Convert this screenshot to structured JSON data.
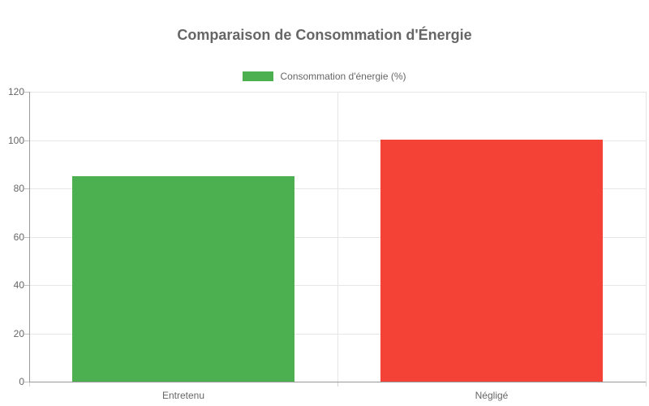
{
  "title": "Comparaison de Consommation d'Énergie",
  "legend": {
    "label": "Consommation d'énergie (%)",
    "swatch_color": "#4caf50"
  },
  "colors": {
    "background": "#ffffff",
    "text": "#666666",
    "grid": "#e6e6e6",
    "axis": "#999999",
    "bar_green": "#4caf50",
    "bar_red": "#f44336"
  },
  "chart_data": {
    "type": "bar",
    "title": "Comparaison de Consommation d'Énergie",
    "categories": [
      "Entretenu",
      "Négligé"
    ],
    "values": [
      85,
      100
    ],
    "bar_colors": [
      "#4caf50",
      "#f44336"
    ],
    "series": [
      {
        "name": "Consommation d'énergie (%)",
        "values": [
          85,
          100
        ]
      }
    ],
    "xlabel": "",
    "ylabel": "",
    "ylim": [
      0,
      120
    ],
    "yticks": [
      0,
      20,
      40,
      60,
      80,
      100,
      120
    ],
    "grid": true,
    "legend_position": "top-center"
  }
}
